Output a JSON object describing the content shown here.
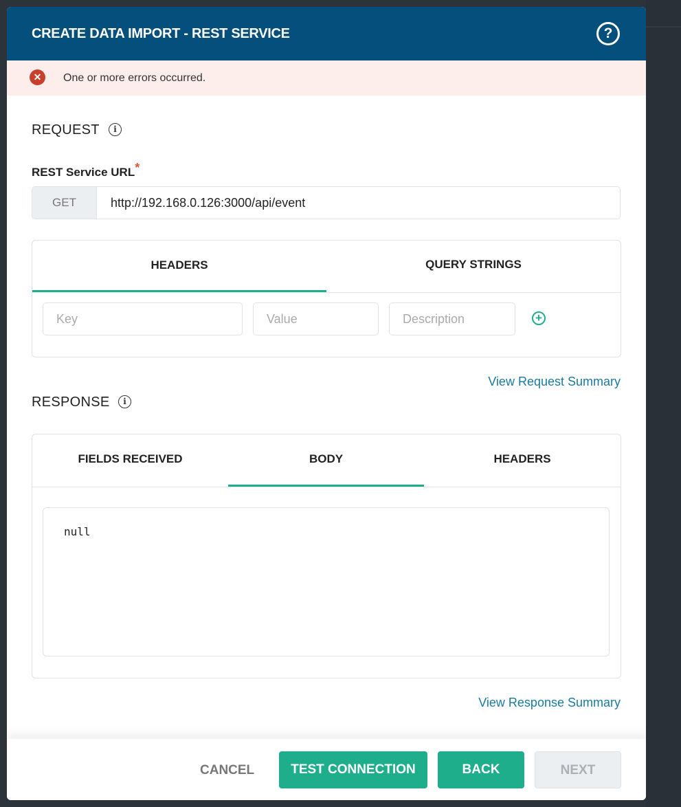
{
  "dialog": {
    "title": "CREATE DATA IMPORT - REST SERVICE",
    "help_icon": "question-circle-icon"
  },
  "error": {
    "message": "One or more errors occurred.",
    "icon": "x-circle-icon",
    "color": "#c8402c"
  },
  "request": {
    "heading": "REQUEST",
    "url_label": "REST Service URL",
    "required_mark": "*",
    "method": "GET",
    "url": "http://192.168.0.126:3000/api/event",
    "tabs": [
      {
        "label": "HEADERS",
        "active": true
      },
      {
        "label": "QUERY STRINGS",
        "active": false
      }
    ],
    "key_placeholder": "Key",
    "value_placeholder": "Value",
    "description_placeholder": "Description",
    "summary_link": "View Request Summary"
  },
  "response": {
    "heading": "RESPONSE",
    "tabs": [
      {
        "label": "FIELDS RECEIVED",
        "active": false
      },
      {
        "label": "BODY",
        "active": true
      },
      {
        "label": "HEADERS",
        "active": false
      }
    ],
    "body": "null",
    "summary_link": "View Response Summary"
  },
  "footer": {
    "cancel": "CANCEL",
    "test": "TEST CONNECTION",
    "back": "BACK",
    "next": "NEXT"
  },
  "colors": {
    "header": "#054f7d",
    "accent": "#1fae8c",
    "link": "#1a7a9e"
  }
}
